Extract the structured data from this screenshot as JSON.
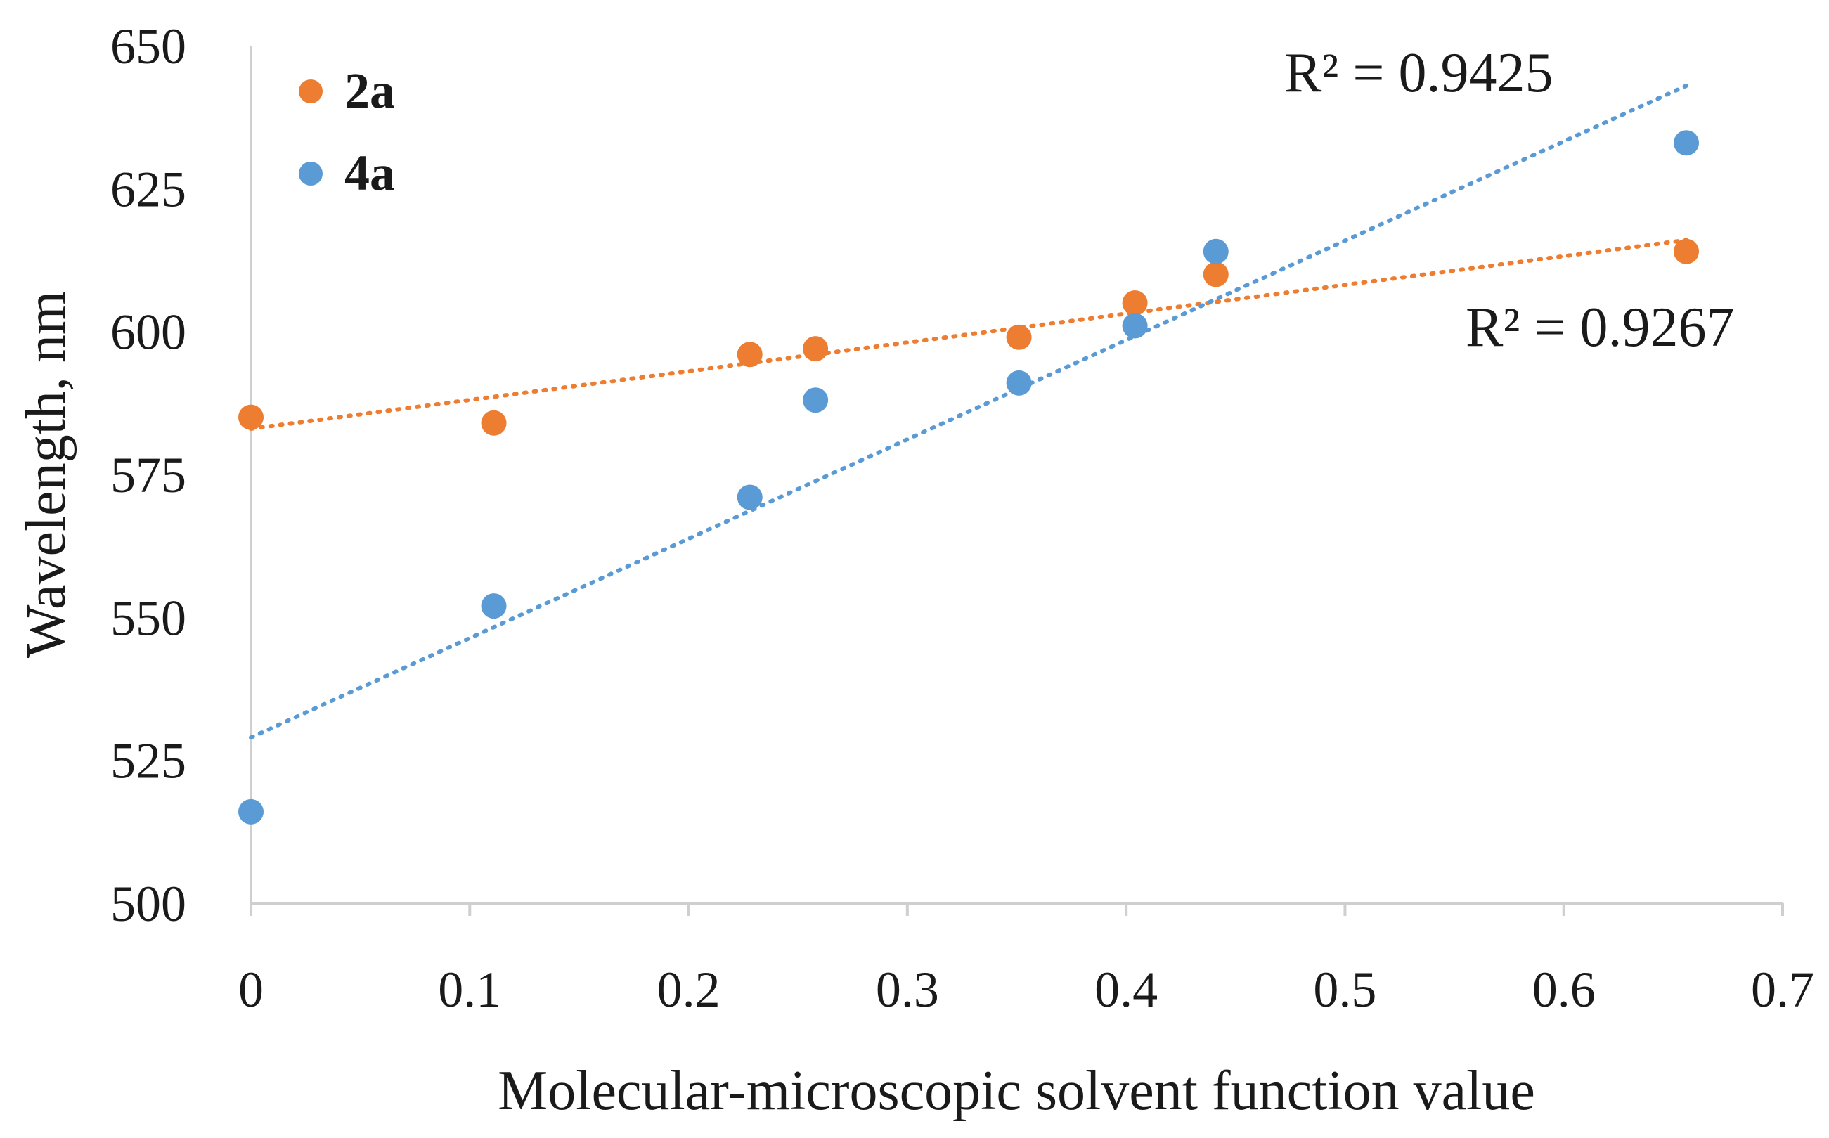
{
  "chart_data": {
    "type": "scatter",
    "title": "",
    "xlabel": "Molecular-microscopic solvent function value",
    "ylabel": "Wavelength, nm",
    "xlim": [
      0,
      0.7
    ],
    "ylim": [
      500,
      650
    ],
    "x_ticks": [
      "0",
      "0.1",
      "0.2",
      "0.3",
      "0.4",
      "0.5",
      "0.6",
      "0.7"
    ],
    "y_ticks": [
      "500",
      "525",
      "550",
      "575",
      "600",
      "625",
      "650"
    ],
    "legend_position": "top-left",
    "series": [
      {
        "name": "2a",
        "color": "#ED7D31",
        "x": [
          0,
          0.111,
          0.228,
          0.258,
          0.351,
          0.404,
          0.441,
          0.656
        ],
        "y": [
          585,
          584,
          596,
          597,
          599,
          605,
          610,
          614
        ],
        "trendline": {
          "x": [
            0,
            0.656
          ],
          "y": [
            583,
            616
          ]
        },
        "r_squared_label": "R² = 0.9267"
      },
      {
        "name": "4a",
        "color": "#5B9BD5",
        "x": [
          0,
          0.111,
          0.228,
          0.258,
          0.351,
          0.404,
          0.441,
          0.656
        ],
        "y": [
          516,
          552,
          571,
          588,
          591,
          601,
          614,
          633
        ],
        "trendline": {
          "x": [
            0,
            0.656
          ],
          "y": [
            529,
            643
          ]
        },
        "r_squared_label": "R² = 0.9425"
      }
    ]
  }
}
